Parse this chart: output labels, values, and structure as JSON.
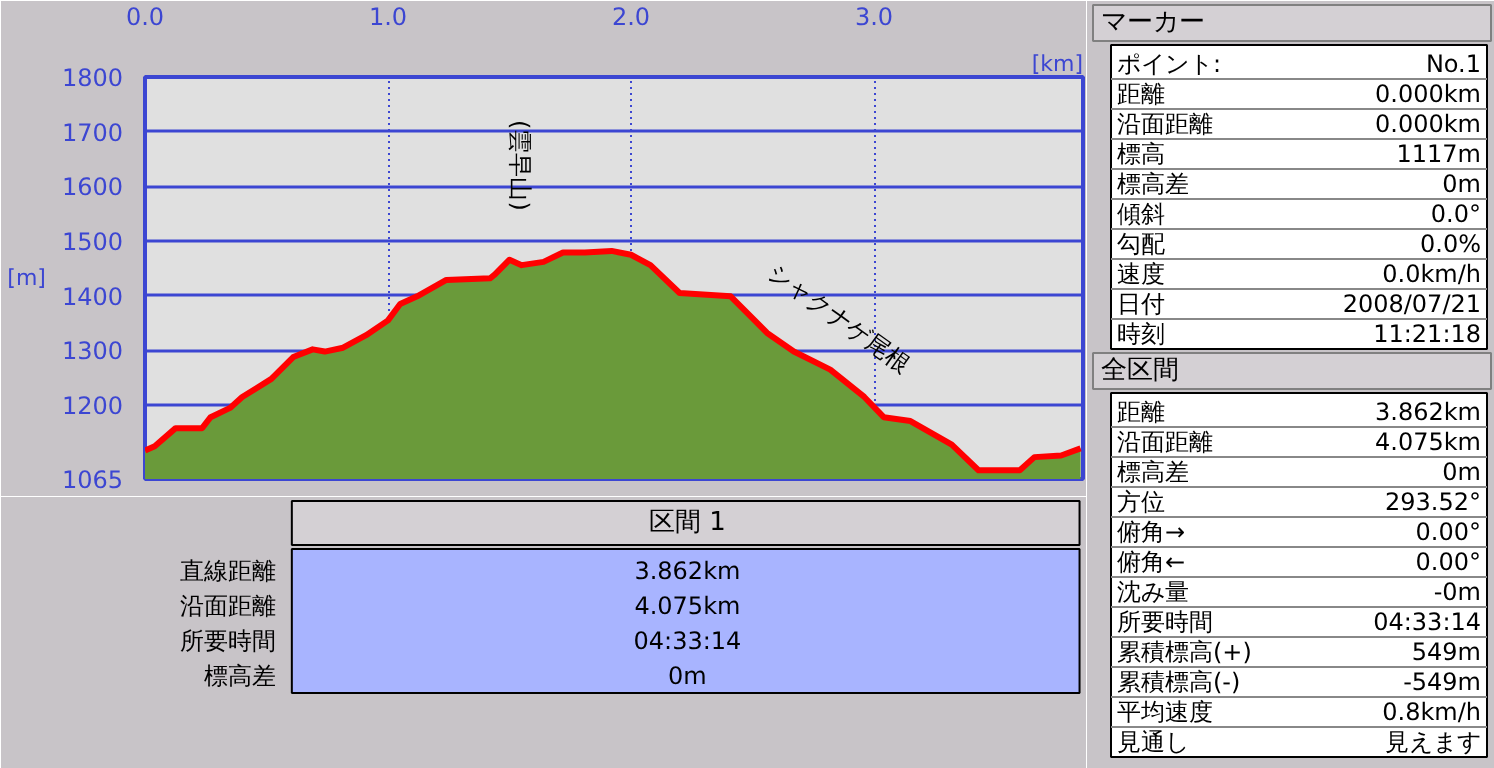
{
  "chart_data": {
    "type": "area",
    "xlabel": "[km]",
    "ylabel": "[m]",
    "x": [
      0,
      0.04,
      0.126,
      0.235,
      0.27,
      0.35,
      0.4,
      0.52,
      0.61,
      0.69,
      0.74,
      0.815,
      0.91,
      1.0,
      1.05,
      1.12,
      1.24,
      1.42,
      1.44,
      1.5,
      1.55,
      1.64,
      1.72,
      1.81,
      1.92,
      2.0,
      2.08,
      2.2,
      2.41,
      2.56,
      2.67,
      2.82,
      2.96,
      3.04,
      3.15,
      3.32,
      3.43,
      3.6,
      3.66,
      3.77,
      3.85
    ],
    "series": [
      {
        "color": "#6a9a3a",
        "values": [
          1117,
          1125,
          1158,
          1158,
          1178,
          1195,
          1215,
          1248,
          1288,
          1302,
          1298,
          1305,
          1328,
          1355,
          1385,
          1399,
          1429,
          1432,
          1439,
          1466,
          1456,
          1462,
          1479,
          1479,
          1482,
          1475,
          1456,
          1405,
          1399,
          1332,
          1298,
          1265,
          1215,
          1178,
          1171,
          1128,
          1081,
          1081,
          1105,
          1108,
          1121
        ]
      },
      {
        "type": "line",
        "color": "#ff0000",
        "values": [
          1117,
          1125,
          1158,
          1158,
          1178,
          1195,
          1215,
          1248,
          1288,
          1302,
          1298,
          1305,
          1328,
          1355,
          1385,
          1399,
          1429,
          1432,
          1439,
          1466,
          1456,
          1462,
          1479,
          1479,
          1482,
          1475,
          1456,
          1405,
          1399,
          1332,
          1298,
          1265,
          1215,
          1178,
          1171,
          1128,
          1081,
          1081,
          1105,
          1108,
          1121
        ]
      }
    ],
    "xlim": [
      0,
      3.86
    ],
    "xticks": [
      {
        "value": 0,
        "label": "0.0"
      },
      {
        "value": 1,
        "label": "1.0"
      },
      {
        "value": 2,
        "label": "2.0"
      },
      {
        "value": 3,
        "label": "3.0"
      }
    ],
    "ylim": [
      1065,
      1800
    ],
    "yticks": [
      1065,
      1200,
      1300,
      1400,
      1500,
      1600,
      1700,
      1800
    ],
    "grid": true,
    "annotations": [
      "(雲早山)",
      "シャクナゲ尾根",
      "マーカー",
      "ポイント:",
      "No.1",
      "距離",
      "0.000km",
      "沿面距離",
      "0.000km",
      "標高",
      "1117m",
      "標高差",
      "0m",
      "傾斜",
      "0.0°",
      "勾配",
      "0.0%",
      "速度",
      "0.0km/h",
      "日付",
      "2008/07/21",
      "時刻",
      "11:21:18",
      "全区間",
      "距離",
      "3.862km",
      "沿面距離",
      "4.075km",
      "標高差",
      "0m",
      "方位",
      "293.52°",
      "俯角→",
      "0.00°",
      "俯角←",
      "0.00°",
      "沈み量",
      "-0m",
      "所要時間",
      "04:33:14",
      "累積標高(+)",
      "549m",
      "累積標高(-)",
      "-549m",
      "平均速度",
      "0.8km/h",
      "見通し",
      "見えます",
      "区間 1",
      "直線距離",
      "3.862km",
      "沿面距離",
      "4.075km",
      "所要時間",
      "04:33:14",
      "標高差",
      "0m"
    ]
  }
}
